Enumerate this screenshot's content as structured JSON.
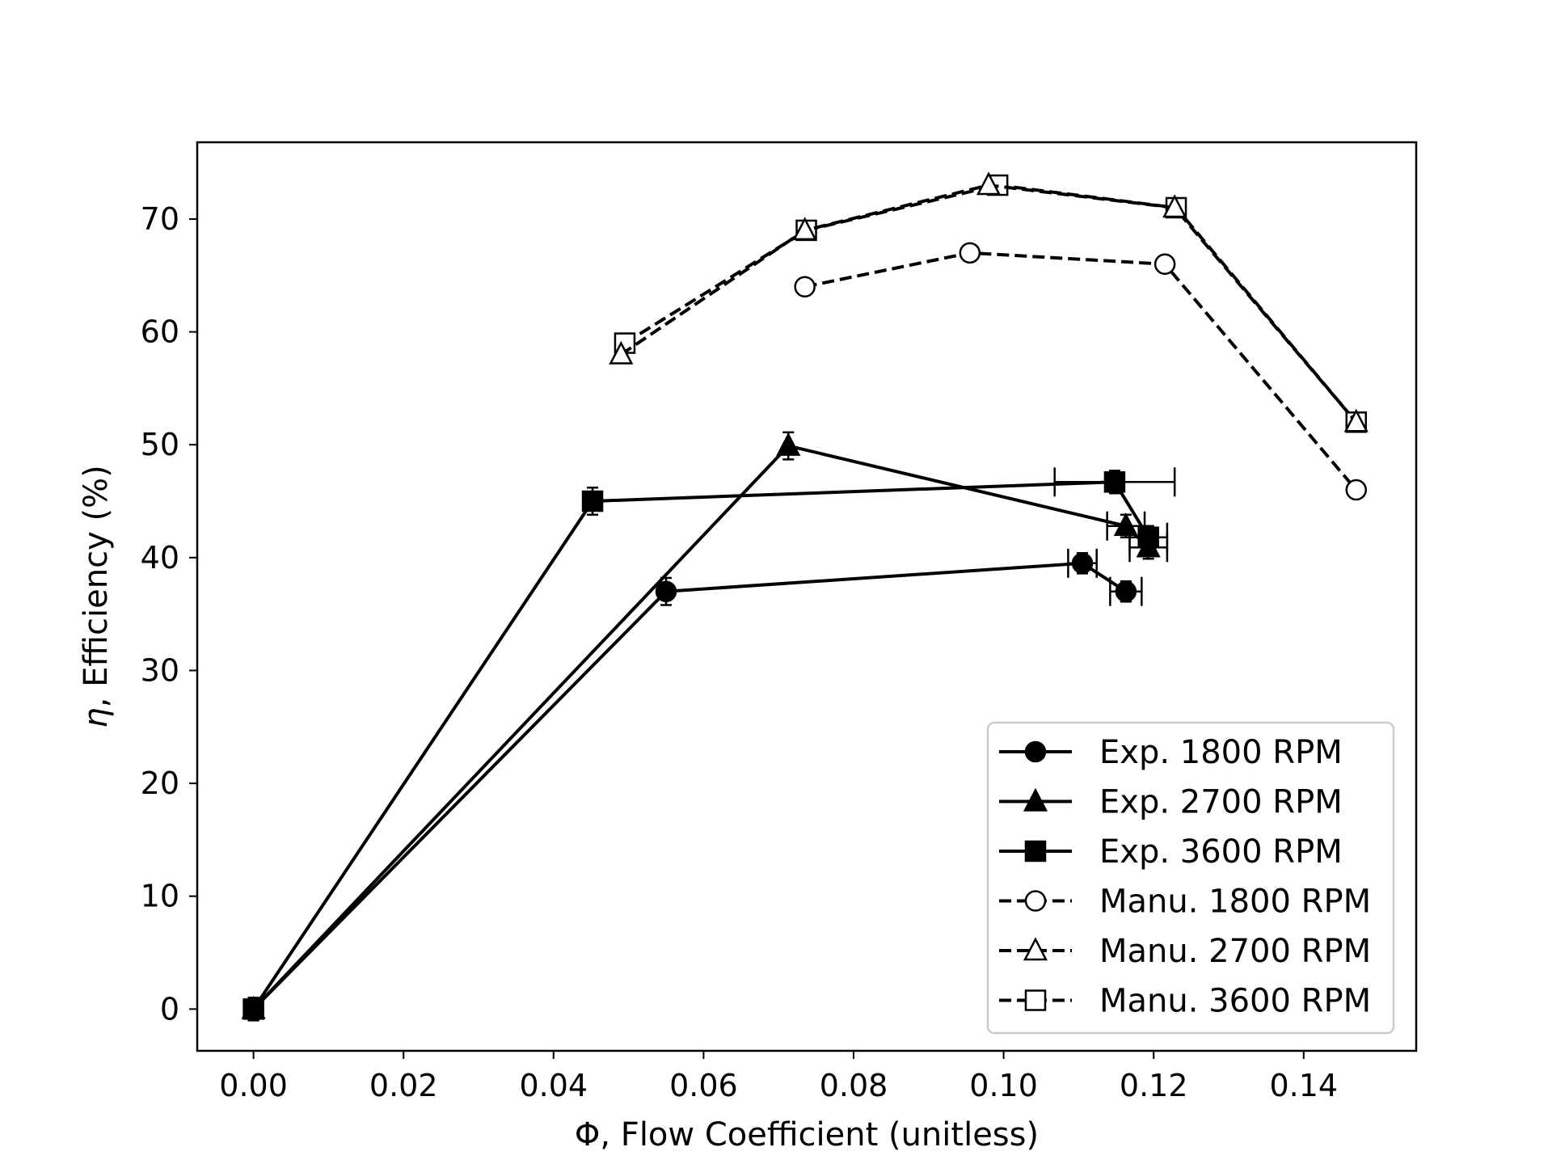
{
  "chart_data": {
    "type": "line",
    "xlabel": "Φ, Flow Coefficient (unitless)",
    "ylabel_symbol": "η",
    "ylabel_rest": ", Efficiency (%)",
    "xlim": [
      -0.0075,
      0.155
    ],
    "ylim": [
      -3.7,
      76.8
    ],
    "x_ticks": [
      0.0,
      0.02,
      0.04,
      0.06,
      0.08,
      0.1,
      0.12,
      0.14
    ],
    "x_tick_labels": [
      "0.00",
      "0.02",
      "0.04",
      "0.06",
      "0.08",
      "0.10",
      "0.12",
      "0.14"
    ],
    "y_ticks": [
      0,
      10,
      20,
      30,
      40,
      50,
      60,
      70
    ],
    "y_tick_labels": [
      "0",
      "10",
      "20",
      "30",
      "40",
      "50",
      "60",
      "70"
    ],
    "grid": false,
    "legend_position": "lower-right",
    "series": [
      {
        "name": "Exp. 1800 RPM",
        "marker": "circle",
        "filled": true,
        "dashed": false,
        "x": [
          0.0,
          0.055,
          0.1105,
          0.1163
        ],
        "y": [
          0.0,
          37.0,
          39.5,
          37.0
        ],
        "xerr": [
          0.0,
          0.0,
          0.0019,
          0.0021
        ],
        "yerr": [
          0.9,
          1.2,
          0.9,
          0.9
        ]
      },
      {
        "name": "Exp. 2700 RPM",
        "marker": "triangle",
        "filled": true,
        "dashed": false,
        "x": [
          0.0,
          0.0713,
          0.1163,
          0.1193
        ],
        "y": [
          0.0,
          49.9,
          42.8,
          40.9
        ],
        "xerr": [
          0.0,
          0.0,
          0.0025,
          0.0025
        ],
        "yerr": [
          1.0,
          1.2,
          1.0,
          1.0
        ]
      },
      {
        "name": "Exp. 3600 RPM",
        "marker": "square",
        "filled": true,
        "dashed": false,
        "x": [
          0.0,
          0.0452,
          0.1148,
          0.1193
        ],
        "y": [
          0.0,
          45.0,
          46.7,
          41.8
        ],
        "xerr": [
          0.0,
          0.0,
          0.008,
          0.0025
        ],
        "yerr": [
          1.0,
          1.2,
          1.0,
          1.0
        ]
      },
      {
        "name": "Manu. 1800 RPM",
        "marker": "circle",
        "filled": false,
        "dashed": true,
        "x": [
          0.0735,
          0.0955,
          0.1215,
          0.147
        ],
        "y": [
          64.0,
          67.0,
          66.0,
          46.0
        ]
      },
      {
        "name": "Manu. 2700 RPM",
        "marker": "triangle",
        "filled": false,
        "dashed": true,
        "x": [
          0.049,
          0.0735,
          0.098,
          0.1228,
          0.147
        ],
        "y": [
          58.0,
          69.0,
          73.0,
          71.0,
          52.0
        ]
      },
      {
        "name": "Manu. 3600 RPM",
        "marker": "square",
        "filled": false,
        "dashed": true,
        "x": [
          0.0495,
          0.0737,
          0.0992,
          0.123,
          0.147
        ],
        "y": [
          59.0,
          69.0,
          73.0,
          71.0,
          52.0
        ]
      }
    ]
  }
}
